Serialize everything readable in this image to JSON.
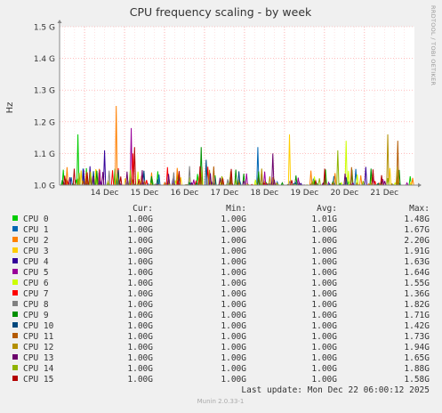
{
  "chart_data": {
    "type": "line",
    "title": "CPU frequency scaling - by week",
    "ylabel": "Hz",
    "watermark": "RRDTOOL / TOBI OETIKER",
    "ylim": [
      1.0,
      1.5
    ],
    "y_ticks": [
      1.0,
      1.1,
      1.2,
      1.3,
      1.4,
      1.5
    ],
    "y_tick_labels": [
      "1.0 G",
      "1.1 G",
      "1.2 G",
      "1.3 G",
      "1.4 G",
      "1.5 G"
    ],
    "x_tick_labels": [
      "14 Dec",
      "15 Dec",
      "16 Dec",
      "17 Dec",
      "18 Dec",
      "19 Dec",
      "20 Dec",
      "21 Dec"
    ],
    "x_tick_dates": [
      "2025-12-14",
      "2025-12-15",
      "2025-12-16",
      "2025-12-17",
      "2025-12-18",
      "2025-12-19",
      "2025-12-20",
      "2025-12-21"
    ],
    "x_range_dates": [
      "2025-12-13T09:00",
      "2025-12-22T06:00"
    ],
    "grid": true,
    "colors": {
      "background": "#f0f0f0",
      "canvas": "#ffffff",
      "grid": "#ff9999",
      "axis": "#888888",
      "text": "#333333",
      "footer": "#aaaaaa"
    },
    "legend_headers": {
      "cur": "Cur:",
      "min": "Min:",
      "avg": "Avg:",
      "max": "Max:"
    },
    "series": [
      {
        "name": "CPU 0",
        "color": "#00cc00",
        "cur": "1.00G",
        "min": "1.00G",
        "avg": "1.01G",
        "max": "1.48G",
        "peak_value": 1.16,
        "peak_date": "2025-12-13T20:00"
      },
      {
        "name": "CPU 1",
        "color": "#0066b3",
        "cur": "1.00G",
        "min": "1.00G",
        "avg": "1.00G",
        "max": "1.67G",
        "peak_value": 1.12,
        "peak_date": "2025-12-18T08:00"
      },
      {
        "name": "CPU 2",
        "color": "#ff8000",
        "cur": "1.00G",
        "min": "1.00G",
        "avg": "1.00G",
        "max": "2.20G",
        "peak_value": 1.25,
        "peak_date": "2025-12-14T19:00"
      },
      {
        "name": "CPU 3",
        "color": "#ffcc00",
        "cur": "1.00G",
        "min": "1.00G",
        "avg": "1.00G",
        "max": "1.91G",
        "peak_value": 1.16,
        "peak_date": "2025-12-19T03:00"
      },
      {
        "name": "CPU 4",
        "color": "#330099",
        "cur": "1.00G",
        "min": "1.00G",
        "avg": "1.00G",
        "max": "1.63G",
        "peak_value": 1.11,
        "peak_date": "2025-12-14T12:00"
      },
      {
        "name": "CPU 5",
        "color": "#990099",
        "cur": "1.00G",
        "min": "1.00G",
        "avg": "1.00G",
        "max": "1.64G",
        "peak_value": 1.18,
        "peak_date": "2025-12-15T04:00"
      },
      {
        "name": "CPU 6",
        "color": "#ccff00",
        "cur": "1.00G",
        "min": "1.00G",
        "avg": "1.00G",
        "max": "1.55G",
        "peak_value": 1.14,
        "peak_date": "2025-12-20T13:00"
      },
      {
        "name": "CPU 7",
        "color": "#ff0000",
        "cur": "1.00G",
        "min": "1.00G",
        "avg": "1.00G",
        "max": "1.36G",
        "peak_value": 1.1,
        "peak_date": "2025-12-15T05:00"
      },
      {
        "name": "CPU 8",
        "color": "#808080",
        "cur": "1.00G",
        "min": "1.00G",
        "avg": "1.00G",
        "max": "1.82G",
        "peak_value": 1.06,
        "peak_date": "2025-12-16T15:00"
      },
      {
        "name": "CPU 9",
        "color": "#008f00",
        "cur": "1.00G",
        "min": "1.00G",
        "avg": "1.00G",
        "max": "1.71G",
        "peak_value": 1.12,
        "peak_date": "2025-12-16T22:00"
      },
      {
        "name": "CPU 10",
        "color": "#00487d",
        "cur": "1.00G",
        "min": "1.00G",
        "avg": "1.00G",
        "max": "1.42G",
        "peak_value": 1.08,
        "peak_date": "2025-12-17T01:00"
      },
      {
        "name": "CPU 11",
        "color": "#b35a00",
        "cur": "1.00G",
        "min": "1.00G",
        "avg": "1.00G",
        "max": "1.73G",
        "peak_value": 1.14,
        "peak_date": "2025-12-21T20:00"
      },
      {
        "name": "CPU 12",
        "color": "#b38f00",
        "cur": "1.00G",
        "min": "1.00G",
        "avg": "1.00G",
        "max": "1.94G",
        "peak_value": 1.16,
        "peak_date": "2025-12-21T14:00"
      },
      {
        "name": "CPU 13",
        "color": "#6b006b",
        "cur": "1.00G",
        "min": "1.00G",
        "avg": "1.00G",
        "max": "1.65G",
        "peak_value": 1.1,
        "peak_date": "2025-12-18T17:00"
      },
      {
        "name": "CPU 14",
        "color": "#8fb300",
        "cur": "1.00G",
        "min": "1.00G",
        "avg": "1.00G",
        "max": "1.88G",
        "peak_value": 1.11,
        "peak_date": "2025-12-20T08:00"
      },
      {
        "name": "CPU 15",
        "color": "#b30000",
        "cur": "1.00G",
        "min": "1.00G",
        "avg": "1.00G",
        "max": "1.58G",
        "peak_value": 1.12,
        "peak_date": "2025-12-15T06:00"
      }
    ]
  },
  "footer": {
    "last_update": "Last update:  Mon Dec 22 06:00:12 2025",
    "version": "Munin 2.0.33-1"
  }
}
